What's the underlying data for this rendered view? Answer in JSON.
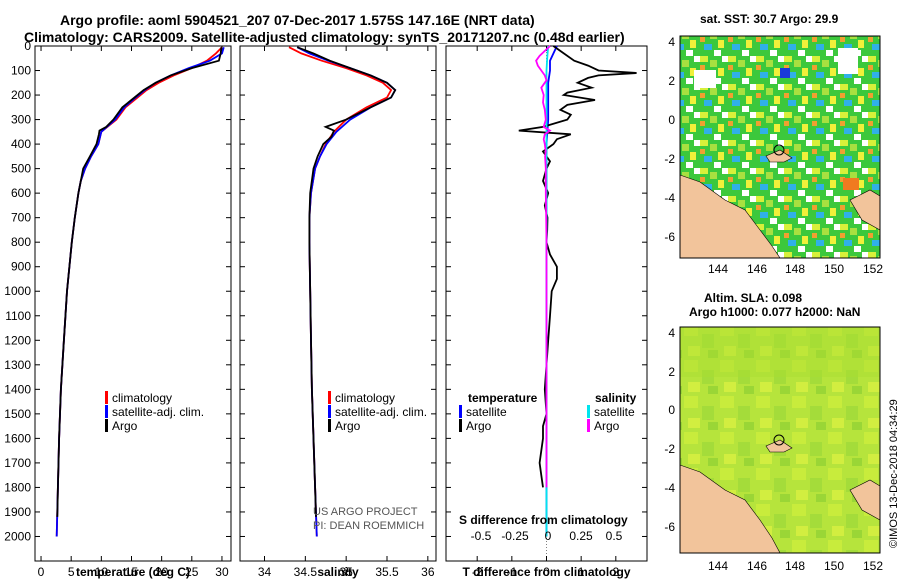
{
  "titles": {
    "line1": "Argo profile: aoml 5904521_207 07-Dec-2017 1.575S 147.16E (NRT data)",
    "line2": "Climatology: CARS2009. Satellite-adjusted climatology: synTS_20171207.nc (0.48d earlier)"
  },
  "colors": {
    "clim": "#ff0000",
    "sat": "#0000ff",
    "argo": "#000000",
    "sat_s": "#00e5ee",
    "argo_s": "#ff00ff"
  },
  "depth_axis": {
    "ticks": [
      0,
      100,
      200,
      300,
      400,
      500,
      600,
      700,
      800,
      900,
      1000,
      1100,
      1200,
      1300,
      1400,
      1500,
      1600,
      1700,
      1800,
      1900,
      2000
    ]
  },
  "legend_main": [
    "climatology",
    "satellite-adj. clim.",
    "Argo"
  ],
  "project_note": [
    "US ARGO PROJECT",
    "PI: DEAN ROEMMICH"
  ],
  "diff_legend": {
    "temp_head": "temperature",
    "sal_head": "salinity",
    "temp_items": [
      "satellite",
      "Argo"
    ],
    "sal_items": [
      "satellite",
      "Argo"
    ],
    "s_axis_title": "S difference from climatology",
    "s_ticks": [
      "-0.5",
      "-0.25",
      "0",
      "0.25",
      "0.5"
    ]
  },
  "sst_panel": {
    "title": "sat. SST: 30.7 Argo: 29.9",
    "y_ticks": [
      "4",
      "2",
      "0",
      "-2",
      "-4",
      "-6"
    ],
    "x_ticks": [
      "144",
      "146",
      "148",
      "150",
      "152"
    ]
  },
  "sla_panel": {
    "title1": "Altim. SLA: 0.098",
    "title2": "Argo h1000: 0.077 h2000: NaN",
    "y_ticks": [
      "4",
      "2",
      "0",
      "-2",
      "-4",
      "-6"
    ],
    "x_ticks": [
      "144",
      "146",
      "148",
      "150",
      "152"
    ]
  },
  "credit": "©IMOS 13-Dec-2018 04:34:29",
  "chart_data": [
    {
      "type": "line",
      "title": "temperature",
      "xlabel": "temperature (deg C)",
      "ylabel": "depth",
      "xlim": [
        -1,
        31.5
      ],
      "ylim": [
        2100,
        0
      ],
      "x_ticks": [
        0,
        5,
        10,
        15,
        20,
        25,
        30
      ],
      "series": [
        {
          "name": "climatology",
          "depth": [
            5,
            30,
            60,
            90,
            120,
            150,
            180,
            210,
            250,
            300,
            350,
            400,
            450,
            500,
            550,
            600,
            700,
            800,
            900,
            1000,
            1200,
            1400,
            1600,
            1800,
            2000
          ],
          "values": [
            30,
            29,
            27.5,
            25,
            22,
            19.5,
            17.5,
            16,
            14,
            12.5,
            10,
            9.5,
            8.3,
            7.3,
            6.6,
            6.2,
            5.6,
            5.1,
            4.7,
            4.3,
            3.8,
            3.3,
            3.0,
            2.8,
            2.6
          ]
        },
        {
          "name": "satellite-adj. clim.",
          "depth": [
            5,
            30,
            60,
            90,
            120,
            150,
            180,
            210,
            250,
            300,
            350,
            400,
            450,
            500,
            550,
            600,
            700,
            800,
            900,
            1000,
            1200,
            1400,
            1600,
            1800,
            2000
          ],
          "values": [
            30.3,
            30,
            28,
            24.5,
            21.5,
            19,
            17.2,
            15.7,
            13.8,
            12.3,
            10,
            9.5,
            8.3,
            7.3,
            6.6,
            6.2,
            5.6,
            5.1,
            4.7,
            4.3,
            3.8,
            3.3,
            3.0,
            2.8,
            2.6
          ]
        },
        {
          "name": "Argo",
          "depth": [
            5,
            30,
            60,
            90,
            120,
            150,
            180,
            210,
            250,
            300,
            330,
            345,
            360,
            400,
            450,
            500,
            550,
            600,
            700,
            800,
            900,
            1000,
            1200,
            1400,
            1600,
            1800,
            1920
          ],
          "values": [
            29.9,
            29.8,
            29.5,
            25,
            21.5,
            19,
            17,
            15.5,
            13.5,
            12,
            10.8,
            9.7,
            9.6,
            9.2,
            8.1,
            7.0,
            6.6,
            6.2,
            5.6,
            5.1,
            4.7,
            4.3,
            3.8,
            3.3,
            3.0,
            2.8,
            2.7
          ]
        }
      ]
    },
    {
      "type": "line",
      "title": "salinity",
      "xlabel": "salinity",
      "ylabel": "depth",
      "xlim": [
        33.7,
        36.1
      ],
      "ylim": [
        2100,
        0
      ],
      "x_ticks": [
        34,
        34.5,
        35,
        35.5,
        36
      ],
      "series": [
        {
          "name": "climatology",
          "depth": [
            5,
            30,
            60,
            90,
            120,
            150,
            180,
            210,
            250,
            300,
            350,
            400,
            450,
            500,
            600,
            700,
            800,
            1000,
            1200,
            1400,
            1600,
            1800,
            2000
          ],
          "values": [
            34.3,
            34.45,
            34.7,
            35.0,
            35.25,
            35.45,
            35.55,
            35.5,
            35.25,
            35.0,
            34.85,
            34.75,
            34.68,
            34.62,
            34.57,
            34.55,
            34.55,
            34.56,
            34.57,
            34.58,
            34.6,
            34.62,
            34.64
          ]
        },
        {
          "name": "satellite-adj. clim.",
          "depth": [
            5,
            30,
            60,
            90,
            120,
            150,
            180,
            210,
            250,
            300,
            350,
            400,
            450,
            500,
            600,
            700,
            800,
            1000,
            1200,
            1400,
            1600,
            1800,
            2000
          ],
          "values": [
            34.4,
            34.55,
            34.78,
            35.05,
            35.3,
            35.5,
            35.6,
            35.55,
            35.3,
            35.05,
            34.88,
            34.76,
            34.68,
            34.62,
            34.57,
            34.55,
            34.55,
            34.56,
            34.57,
            34.58,
            34.6,
            34.62,
            34.64
          ]
        },
        {
          "name": "Argo",
          "depth": [
            5,
            30,
            60,
            90,
            120,
            150,
            180,
            210,
            250,
            300,
            330,
            345,
            370,
            400,
            450,
            500,
            600,
            700,
            800,
            1000,
            1200,
            1400,
            1600,
            1800,
            1920
          ],
          "values": [
            34.4,
            34.6,
            34.8,
            35.05,
            35.3,
            35.5,
            35.6,
            35.55,
            35.3,
            35.0,
            34.75,
            34.85,
            34.82,
            34.72,
            34.65,
            34.6,
            34.56,
            34.55,
            34.55,
            34.56,
            34.57,
            34.58,
            34.6,
            34.62,
            34.63
          ]
        }
      ]
    },
    {
      "type": "line",
      "title": "T/S difference from climatology",
      "xlabel": "T difference from climatology",
      "ylabel": "depth",
      "xlim": [
        -2.9,
        2.9
      ],
      "ylim": [
        2100,
        0
      ],
      "x_ticks": [
        -2,
        -1,
        0,
        1,
        2
      ],
      "series": [
        {
          "name": "temperature satellite",
          "depth": [
            0,
            60,
            100,
            150,
            200,
            300,
            400,
            500,
            700,
            1000,
            1500,
            2000
          ],
          "values": [
            0.3,
            0.1,
            0.1,
            0.05,
            0.05,
            0.05,
            0,
            0,
            0,
            0,
            0,
            0
          ]
        },
        {
          "name": "temperature Argo",
          "depth": [
            0,
            30,
            60,
            80,
            100,
            110,
            120,
            130,
            150,
            170,
            190,
            200,
            220,
            240,
            260,
            280,
            300,
            330,
            345,
            360,
            380,
            400,
            430,
            470,
            500,
            550,
            600,
            650,
            700,
            750,
            800,
            850,
            900,
            950,
            1000,
            1100,
            1200,
            1300,
            1400,
            1500,
            1550,
            1600,
            1650,
            1700,
            1750,
            1800
          ],
          "values": [
            0.2,
            0.5,
            0.8,
            1.2,
            1.5,
            2.6,
            1.5,
            1.2,
            0.9,
            1.3,
            0.6,
            0.5,
            1.4,
            0.6,
            0.4,
            0.7,
            0.6,
            -0.1,
            -0.8,
            0.7,
            0.3,
            0.2,
            -0.1,
            0.1,
            0.0,
            -0.1,
            0.05,
            -0.05,
            0.03,
            0.02,
            0.0,
            0.1,
            0.3,
            0.3,
            0.15,
            0.1,
            0.05,
            0.0,
            -0.05,
            0.0,
            -0.1,
            -0.1,
            -0.15,
            -0.2,
            -0.15,
            -0.1
          ]
        },
        {
          "name": "salinity satellite",
          "depth": [
            0,
            50,
            100,
            150,
            200,
            300,
            400,
            500,
            700,
            1000,
            1500,
            2000
          ],
          "values": [
            0.05,
            0.02,
            0.0,
            0.0,
            0.0,
            0.0,
            0.0,
            0.0,
            0.0,
            0.0,
            0.0,
            0.0
          ]
        },
        {
          "name": "salinity Argo",
          "depth": [
            0,
            40,
            60,
            80,
            100,
            120,
            140,
            170,
            200,
            230,
            260,
            300,
            330,
            345,
            360,
            380,
            400,
            430,
            450,
            500,
            600,
            700,
            800,
            1000,
            1200,
            1400,
            1600,
            1800
          ],
          "values": [
            0.1,
            -0.2,
            -0.3,
            -0.25,
            -0.15,
            -0.05,
            0.0,
            -0.15,
            -0.08,
            -0.1,
            -0.05,
            -0.02,
            -0.08,
            0.1,
            -0.05,
            -0.08,
            -0.05,
            -0.02,
            -0.04,
            -0.02,
            -0.02,
            -0.01,
            0.0,
            0.0,
            0.0,
            0.0,
            0.0,
            0.0
          ]
        }
      ]
    }
  ]
}
